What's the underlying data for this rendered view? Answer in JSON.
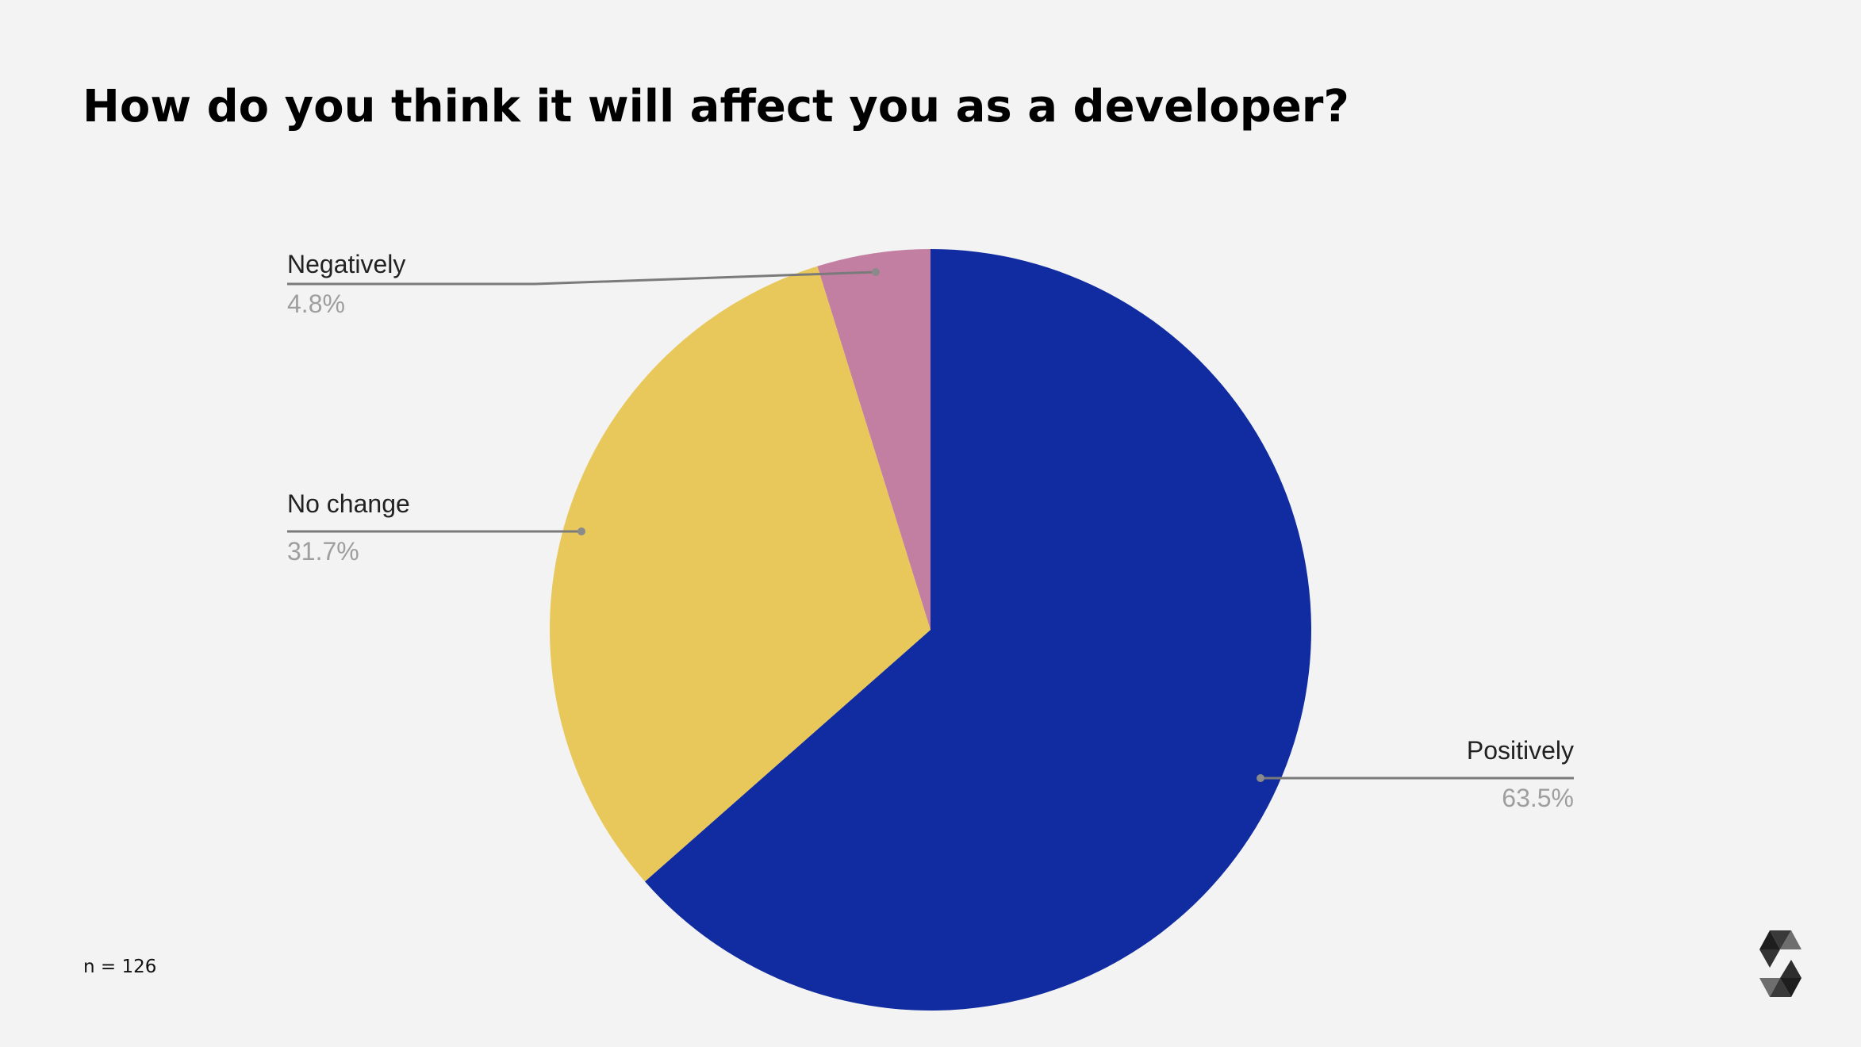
{
  "title": "How do you think it will affect you as a developer?",
  "note": "n = 126",
  "chart_data": {
    "type": "pie",
    "title": "How do you think it will affect you as a developer?",
    "start_angle": "top, clockwise",
    "slices": [
      {
        "label": "Positively",
        "value": 63.5,
        "value_label": "63.5%",
        "color": "#102ca0"
      },
      {
        "label": "No change",
        "value": 31.7,
        "value_label": "31.7%",
        "color": "#e8c85a"
      },
      {
        "label": "Negatively",
        "value": 4.8,
        "value_label": "4.8%",
        "color": "#c27fa2"
      }
    ],
    "legend": "none (labels with leader lines)"
  },
  "logo": {
    "name": "solidity-logo-icon"
  }
}
